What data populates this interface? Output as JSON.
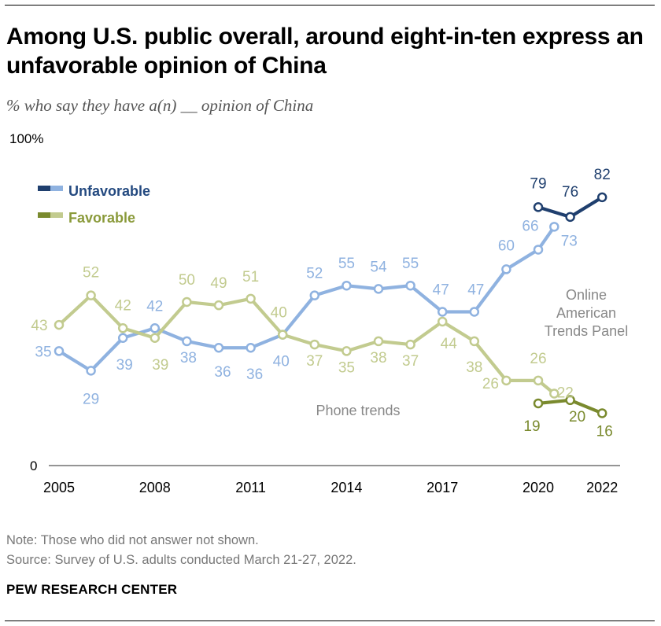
{
  "header": {
    "title": "Among U.S. public overall, around eight-in-ten express an unfavorable opinion of China",
    "subtitle": "% who say they have a(n) __ opinion of China"
  },
  "footer": {
    "note": "Note: Those who did not answer not shown.",
    "source": "Source: Survey of U.S. adults conducted March 21-27, 2022.",
    "brand": "PEW RESEARCH CENTER"
  },
  "colors": {
    "unfav_phone": "#8fb2e0",
    "unfav_online": "#1f3f6e",
    "unfav_legend_text": "#244a80",
    "fav_phone": "#c2cb8f",
    "fav_online": "#7a8a2e",
    "fav_legend_text": "#8a9a3a",
    "annotation": "#888888"
  },
  "chart_data": {
    "type": "line",
    "ylim": [
      0,
      100
    ],
    "y_tick_labels": [
      "100%",
      "0"
    ],
    "x_tick_labels": [
      "2005",
      "2008",
      "2011",
      "2014",
      "2017",
      "2020",
      "2022"
    ],
    "legend": {
      "placement": "top-left",
      "items": [
        "Unfavorable",
        "Favorable"
      ]
    },
    "annotations": [
      "Phone trends",
      "Online American Trends Panel"
    ],
    "series": [
      {
        "name": "Unfavorable",
        "mode": "Phone trends",
        "color_key": "unfav_phone",
        "x": [
          2005,
          2006,
          2007,
          2008,
          2009,
          2010,
          2011,
          2012,
          2013,
          2014,
          2015,
          2016,
          2017,
          2018,
          2019,
          2020,
          2020.5
        ],
        "values": [
          35,
          29,
          39,
          42,
          38,
          36,
          36,
          40,
          52,
          55,
          54,
          55,
          47,
          47,
          60,
          66,
          73
        ],
        "labels": [
          "35",
          "29",
          "39",
          "42",
          "38",
          "36",
          "36",
          "40",
          "52",
          "55",
          "54",
          "55",
          "47",
          "47",
          "60",
          "66",
          "73"
        ]
      },
      {
        "name": "Favorable",
        "mode": "Phone trends",
        "color_key": "fav_phone",
        "x": [
          2005,
          2006,
          2007,
          2008,
          2009,
          2010,
          2011,
          2012,
          2013,
          2014,
          2015,
          2016,
          2017,
          2018,
          2019,
          2020,
          2020.5
        ],
        "values": [
          43,
          52,
          42,
          39,
          50,
          49,
          51,
          40,
          37,
          35,
          38,
          37,
          44,
          38,
          26,
          26,
          22
        ],
        "labels": [
          "43",
          "52",
          "42",
          "39",
          "50",
          "49",
          "51",
          "40",
          "37",
          "35",
          "38",
          "37",
          "44",
          "38",
          "26",
          "26",
          "22"
        ]
      },
      {
        "name": "Unfavorable",
        "mode": "Online American Trends Panel",
        "color_key": "unfav_online",
        "x": [
          2020,
          2021,
          2022
        ],
        "values": [
          79,
          76,
          82
        ],
        "labels": [
          "79",
          "76",
          "82"
        ]
      },
      {
        "name": "Favorable",
        "mode": "Online American Trends Panel",
        "color_key": "fav_online",
        "x": [
          2020,
          2021,
          2022
        ],
        "values": [
          19,
          20,
          16
        ],
        "labels": [
          "19",
          "20",
          "16"
        ]
      }
    ]
  }
}
